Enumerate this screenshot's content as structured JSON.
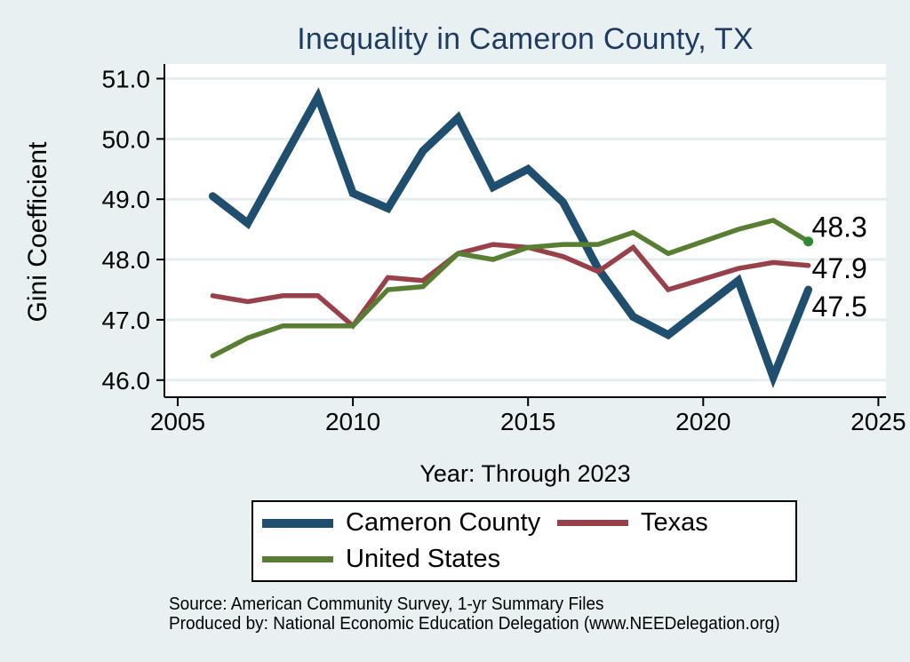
{
  "title": "Inequality in Cameron County, TX",
  "y_axis_title": "Gini Coefficient",
  "x_axis_title": "Year: Through 2023",
  "colors": {
    "background": "#e9f0f2",
    "plot_background": "#ffffff",
    "gridline": "#e4edef",
    "axis": "#000000",
    "title": "#1e3c63",
    "end_dot": "#2e8b32"
  },
  "chart_data": {
    "type": "line",
    "title": "Inequality in Cameron County, TX",
    "xlabel": "Year: Through 2023",
    "ylabel": "Gini Coefficient",
    "grid": true,
    "legend_position": "bottom-center",
    "xlim": [
      2004.6,
      2025.3
    ],
    "ylim": [
      45.75,
      51.25
    ],
    "x_ticks": [
      2005,
      2010,
      2015,
      2020,
      2025
    ],
    "x_tick_labels": [
      "2005",
      "2010",
      "2015",
      "2020",
      "2025"
    ],
    "y_ticks": [
      46,
      47,
      48,
      49,
      50,
      51
    ],
    "y_tick_labels": [
      "46.0",
      "47.0",
      "48.0",
      "49.0",
      "50.0",
      "51.0"
    ],
    "x": [
      2006,
      2007,
      2008,
      2009,
      2010,
      2011,
      2012,
      2013,
      2014,
      2015,
      2016,
      2017,
      2018,
      2019,
      2021,
      2022,
      2023
    ],
    "note": "no 2020 value (series connect 2019 to 2021 directly)",
    "series": [
      {
        "name": "Cameron County",
        "color": "#1f4e6f",
        "line_width": 9,
        "end_label": "47.5",
        "end_dot": false,
        "values": [
          49.05,
          48.6,
          49.65,
          50.7,
          49.1,
          48.85,
          49.8,
          50.35,
          49.2,
          49.5,
          48.95,
          47.85,
          47.05,
          46.75,
          47.65,
          46.05,
          47.5
        ]
      },
      {
        "name": "Texas",
        "color": "#98414a",
        "line_width": 5.5,
        "end_label": "47.9",
        "end_dot": false,
        "values": [
          47.4,
          47.3,
          47.4,
          47.4,
          46.9,
          47.7,
          47.65,
          48.1,
          48.25,
          48.2,
          48.05,
          47.8,
          48.2,
          47.5,
          47.85,
          47.95,
          47.9
        ]
      },
      {
        "name": "United States",
        "color": "#587e31",
        "line_width": 5.5,
        "end_label": "48.3",
        "end_dot": true,
        "values": [
          46.4,
          46.7,
          46.9,
          46.9,
          46.9,
          47.5,
          47.55,
          48.1,
          48.0,
          48.2,
          48.25,
          48.25,
          48.45,
          48.1,
          48.5,
          48.65,
          48.3
        ]
      }
    ]
  },
  "legend": {
    "items": [
      {
        "label": "Cameron County"
      },
      {
        "label": "Texas"
      },
      {
        "label": "United States"
      }
    ]
  },
  "source": {
    "line1": "Source: American Community Survey, 1-yr Summary Files",
    "line2": "Produced by: National Economic Education Delegation (www.NEEDelegation.org)"
  }
}
